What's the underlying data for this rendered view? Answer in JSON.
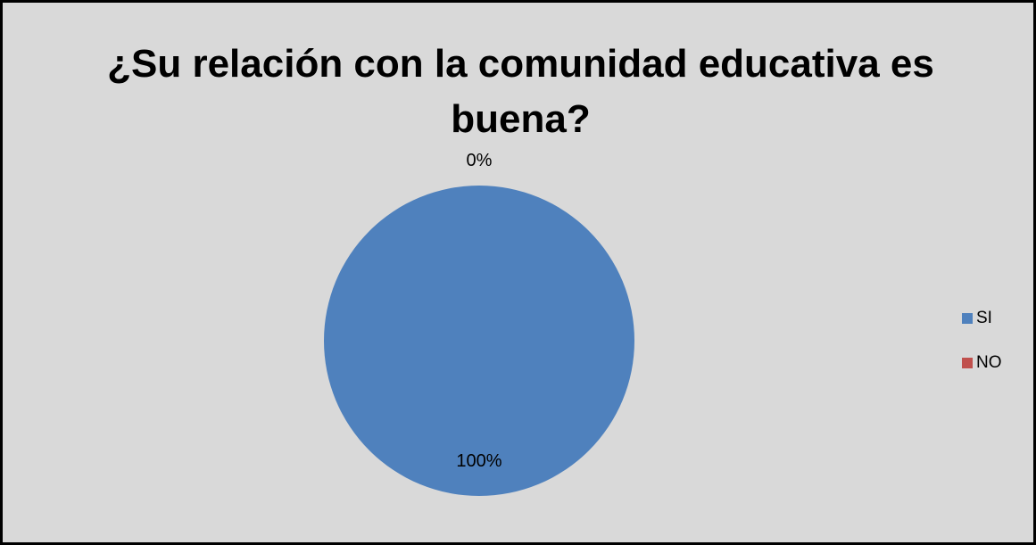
{
  "chart_data": {
    "type": "pie",
    "title_lines": [
      "¿Su relación con la comunidad educativa es",
      "buena?"
    ],
    "categories": [
      "SI",
      "NO"
    ],
    "values": [
      100,
      0
    ],
    "data_labels": [
      "100%",
      "0%"
    ],
    "colors": [
      "#4f81bd",
      "#c0504d"
    ],
    "legend_position": "right"
  }
}
